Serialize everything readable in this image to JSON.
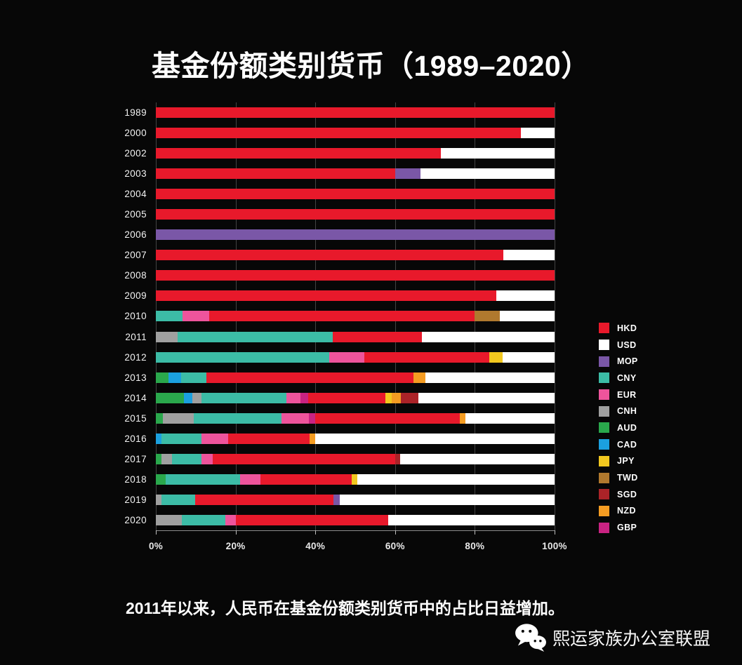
{
  "page": {
    "background": "#070707",
    "title": "基金份额类别货币（1989–2020）",
    "footer_note": "2011年以来，人民币在基金份额类别货币中的占比日益增加。",
    "watermark": {
      "icon": "wechat-icon",
      "text": "熙运家族办公室联盟"
    }
  },
  "chart_data": {
    "type": "bar",
    "orientation": "horizontal",
    "stacked": true,
    "units": "percent",
    "title": "基金份额类别货币（1989–2020）",
    "xlim": [
      0,
      100
    ],
    "x_tick_labels": [
      "0%",
      "20%",
      "40%",
      "60%",
      "80%",
      "100%"
    ],
    "grid": true,
    "legend_position": "right",
    "legend": [
      "HKD",
      "USD",
      "MOP",
      "CNY",
      "EUR",
      "CNH",
      "AUD",
      "CAD",
      "JPY",
      "TWD",
      "SGD",
      "NZD",
      "GBP"
    ],
    "palette": {
      "HKD": "#e8192b",
      "USD": "#ffffff",
      "MOP": "#7a57a7",
      "CNY": "#3cbca6",
      "EUR": "#ee549c",
      "CNH": "#a0a0a0",
      "AUD": "#2aa84c",
      "CAD": "#1ba0df",
      "JPY": "#f2c81f",
      "TWD": "#b0792e",
      "SGD": "#ab2328",
      "NZD": "#f59c22",
      "GBP": "#c92382"
    },
    "categories": [
      "1989",
      "2000",
      "2002",
      "2003",
      "2004",
      "2005",
      "2006",
      "2007",
      "2008",
      "2009",
      "2010",
      "2011",
      "2012",
      "2013",
      "2014",
      "2015",
      "2016",
      "2017",
      "2018",
      "2019",
      "2020"
    ],
    "rows": [
      {
        "year": "1989",
        "segments": [
          [
            "HKD",
            100
          ]
        ]
      },
      {
        "year": "2000",
        "segments": [
          [
            "HKD",
            91.5
          ],
          [
            "USD",
            8.5
          ]
        ]
      },
      {
        "year": "2002",
        "segments": [
          [
            "HKD",
            71.4
          ],
          [
            "USD",
            28.6
          ]
        ]
      },
      {
        "year": "2003",
        "segments": [
          [
            "HKD",
            60.0
          ],
          [
            "MOP",
            6.4
          ],
          [
            "USD",
            33.6
          ]
        ]
      },
      {
        "year": "2004",
        "segments": [
          [
            "HKD",
            100
          ]
        ]
      },
      {
        "year": "2005",
        "segments": [
          [
            "HKD",
            100
          ]
        ]
      },
      {
        "year": "2006",
        "segments": [
          [
            "MOP",
            100
          ]
        ]
      },
      {
        "year": "2007",
        "segments": [
          [
            "HKD",
            87.2
          ],
          [
            "USD",
            12.8
          ]
        ]
      },
      {
        "year": "2008",
        "segments": [
          [
            "HKD",
            100
          ]
        ]
      },
      {
        "year": "2009",
        "segments": [
          [
            "HKD",
            85.4
          ],
          [
            "USD",
            14.6
          ]
        ]
      },
      {
        "year": "2010",
        "segments": [
          [
            "CNY",
            6.7
          ],
          [
            "EUR",
            6.7
          ],
          [
            "HKD",
            66.6
          ],
          [
            "TWD",
            6.3
          ],
          [
            "USD",
            13.7
          ]
        ]
      },
      {
        "year": "2011",
        "segments": [
          [
            "CNH",
            5.5
          ],
          [
            "CNY",
            38.9
          ],
          [
            "HKD",
            22.4
          ],
          [
            "USD",
            33.2
          ]
        ]
      },
      {
        "year": "2012",
        "segments": [
          [
            "CNY",
            43.4
          ],
          [
            "EUR",
            8.9
          ],
          [
            "HKD",
            31.3
          ],
          [
            "JPY",
            3.4
          ],
          [
            "USD",
            13.0
          ]
        ]
      },
      {
        "year": "2013",
        "segments": [
          [
            "AUD",
            3.1
          ],
          [
            "CAD",
            3.2
          ],
          [
            "CNY",
            6.4
          ],
          [
            "HKD",
            51.9
          ],
          [
            "NZD",
            3.0
          ],
          [
            "USD",
            32.4
          ]
        ]
      },
      {
        "year": "2014",
        "segments": [
          [
            "AUD",
            7.0
          ],
          [
            "CAD",
            2.2
          ],
          [
            "CNH",
            2.3
          ],
          [
            "CNY",
            21.3
          ],
          [
            "EUR",
            3.4
          ],
          [
            "GBP",
            2.1
          ],
          [
            "HKD",
            19.3
          ],
          [
            "JPY",
            1.6
          ],
          [
            "NZD",
            2.2
          ],
          [
            "SGD",
            4.5
          ],
          [
            "USD",
            34.1
          ]
        ]
      },
      {
        "year": "2015",
        "segments": [
          [
            "AUD",
            1.7
          ],
          [
            "CNH",
            7.8
          ],
          [
            "CNY",
            22.1
          ],
          [
            "EUR",
            6.7
          ],
          [
            "GBP",
            1.7
          ],
          [
            "HKD",
            36.2
          ],
          [
            "NZD",
            1.5
          ],
          [
            "USD",
            22.3
          ]
        ]
      },
      {
        "year": "2016",
        "segments": [
          [
            "CAD",
            1.4
          ],
          [
            "CNY",
            10.0
          ],
          [
            "EUR",
            6.8
          ],
          [
            "HKD",
            20.3
          ],
          [
            "NZD",
            1.5
          ],
          [
            "USD",
            60.0
          ]
        ]
      },
      {
        "year": "2017",
        "segments": [
          [
            "AUD",
            1.4
          ],
          [
            "CNH",
            2.7
          ],
          [
            "CNY",
            7.3
          ],
          [
            "EUR",
            2.9
          ],
          [
            "HKD",
            45.7
          ],
          [
            "SGD",
            1.2
          ],
          [
            "USD",
            38.8
          ]
        ]
      },
      {
        "year": "2018",
        "segments": [
          [
            "AUD",
            2.4
          ],
          [
            "CNY",
            18.8
          ],
          [
            "EUR",
            5.0
          ],
          [
            "HKD",
            23.0
          ],
          [
            "JPY",
            1.3
          ],
          [
            "USD",
            49.5
          ]
        ]
      },
      {
        "year": "2019",
        "segments": [
          [
            "CNH",
            1.4
          ],
          [
            "CNY",
            8.4
          ],
          [
            "HKD",
            34.7
          ],
          [
            "MOP",
            1.7
          ],
          [
            "USD",
            53.8
          ]
        ]
      },
      {
        "year": "2020",
        "segments": [
          [
            "CNH",
            6.6
          ],
          [
            "CNY",
            10.8
          ],
          [
            "EUR",
            2.6
          ],
          [
            "HKD",
            38.3
          ],
          [
            "USD",
            41.7
          ]
        ]
      }
    ]
  }
}
